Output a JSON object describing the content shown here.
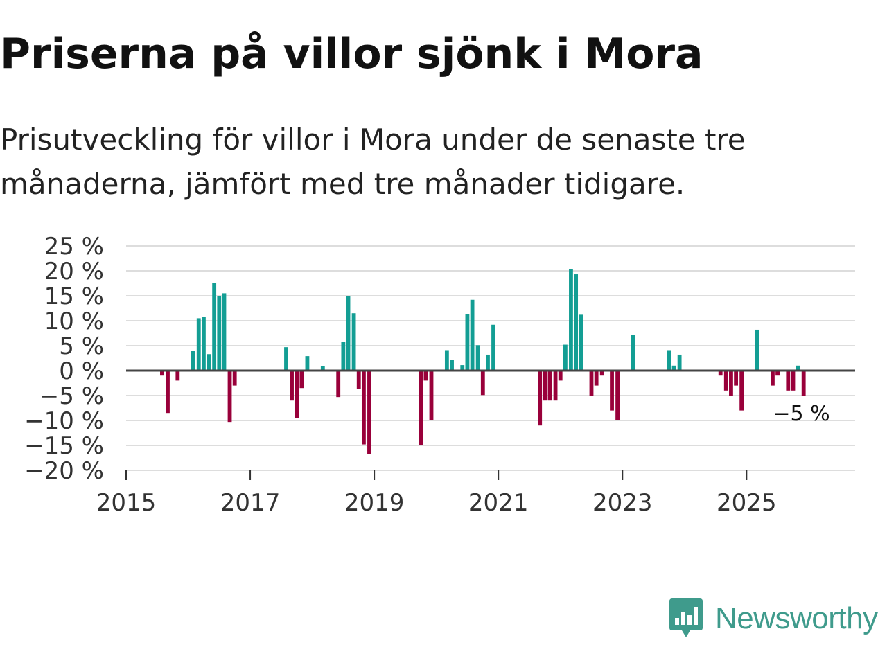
{
  "header": {
    "title": "Priserna på villor sjönk i Mora",
    "subtitle": "Prisutveckling för villor i Mora under de senaste tre månaderna, jämfört med tre månader tidigare."
  },
  "colors": {
    "positive": "#139e94",
    "negative": "#99003a",
    "gridline": "#dddddd",
    "zero_line": "#444444"
  },
  "chart_data": {
    "type": "bar",
    "title": "",
    "xlabel": "",
    "ylabel": "",
    "ylim": [
      -20,
      25
    ],
    "xlim": [
      2015,
      2026.75
    ],
    "y_ticks": [
      25,
      20,
      15,
      10,
      5,
      0,
      -5,
      -10,
      -15,
      -20
    ],
    "y_tick_labels": [
      "25 %",
      "20 %",
      "15 %",
      "10 %",
      "5 %",
      "0 %",
      "−5 %",
      "−10 %",
      "−15 %",
      "−20 %"
    ],
    "x_ticks": [
      2015,
      2017,
      2019,
      2021,
      2023,
      2025
    ],
    "x_tick_labels": [
      "2015",
      "2017",
      "2019",
      "2021",
      "2023",
      "2025"
    ],
    "grid": true,
    "last_value_label": "−5 %",
    "series": [
      {
        "name": "Prisutveckling",
        "points": [
          {
            "x": 2015.58,
            "y": -1
          },
          {
            "x": 2015.67,
            "y": -8.5
          },
          {
            "x": 2015.83,
            "y": -2
          },
          {
            "x": 2016.08,
            "y": 4
          },
          {
            "x": 2016.17,
            "y": 10.5
          },
          {
            "x": 2016.25,
            "y": 10.7
          },
          {
            "x": 2016.33,
            "y": 3.3
          },
          {
            "x": 2016.42,
            "y": 17.5
          },
          {
            "x": 2016.5,
            "y": 15
          },
          {
            "x": 2016.58,
            "y": 15.5
          },
          {
            "x": 2016.67,
            "y": -10.3
          },
          {
            "x": 2016.75,
            "y": -3
          },
          {
            "x": 2017.58,
            "y": 4.7
          },
          {
            "x": 2017.67,
            "y": -6
          },
          {
            "x": 2017.75,
            "y": -9.5
          },
          {
            "x": 2017.83,
            "y": -3.5
          },
          {
            "x": 2017.92,
            "y": 2.9
          },
          {
            "x": 2018.17,
            "y": 0.9
          },
          {
            "x": 2018.42,
            "y": -5.3
          },
          {
            "x": 2018.5,
            "y": 5.8
          },
          {
            "x": 2018.58,
            "y": 15
          },
          {
            "x": 2018.67,
            "y": 11.5
          },
          {
            "x": 2018.75,
            "y": -3.7
          },
          {
            "x": 2018.83,
            "y": -14.8
          },
          {
            "x": 2018.92,
            "y": -16.8
          },
          {
            "x": 2019.75,
            "y": -15
          },
          {
            "x": 2019.83,
            "y": -2
          },
          {
            "x": 2019.92,
            "y": -10
          },
          {
            "x": 2020.17,
            "y": 4.1
          },
          {
            "x": 2020.25,
            "y": 2.2
          },
          {
            "x": 2020.42,
            "y": 1.1
          },
          {
            "x": 2020.5,
            "y": 11.3
          },
          {
            "x": 2020.58,
            "y": 14.2
          },
          {
            "x": 2020.67,
            "y": 5.1
          },
          {
            "x": 2020.75,
            "y": -4.9
          },
          {
            "x": 2020.83,
            "y": 3.2
          },
          {
            "x": 2020.92,
            "y": 9.2
          },
          {
            "x": 2021.67,
            "y": -11
          },
          {
            "x": 2021.75,
            "y": -6
          },
          {
            "x": 2021.83,
            "y": -6
          },
          {
            "x": 2021.92,
            "y": -6
          },
          {
            "x": 2022.0,
            "y": -2
          },
          {
            "x": 2022.08,
            "y": 5.2
          },
          {
            "x": 2022.17,
            "y": 20.3
          },
          {
            "x": 2022.25,
            "y": 19.3
          },
          {
            "x": 2022.33,
            "y": 11.2
          },
          {
            "x": 2022.5,
            "y": -5
          },
          {
            "x": 2022.58,
            "y": -3
          },
          {
            "x": 2022.67,
            "y": -1
          },
          {
            "x": 2022.83,
            "y": -8
          },
          {
            "x": 2022.92,
            "y": -10
          },
          {
            "x": 2023.17,
            "y": 7.1
          },
          {
            "x": 2023.75,
            "y": 4.1
          },
          {
            "x": 2023.83,
            "y": 1
          },
          {
            "x": 2023.92,
            "y": 3.2
          },
          {
            "x": 2024.58,
            "y": -1
          },
          {
            "x": 2024.67,
            "y": -4
          },
          {
            "x": 2024.75,
            "y": -5
          },
          {
            "x": 2024.83,
            "y": -3
          },
          {
            "x": 2024.92,
            "y": -8
          },
          {
            "x": 2025.17,
            "y": 8.2
          },
          {
            "x": 2025.42,
            "y": -3
          },
          {
            "x": 2025.5,
            "y": -1
          },
          {
            "x": 2025.67,
            "y": -4
          },
          {
            "x": 2025.75,
            "y": -4
          },
          {
            "x": 2025.83,
            "y": 1
          },
          {
            "x": 2025.92,
            "y": -5
          }
        ]
      }
    ]
  },
  "brand": {
    "name": "Newsworthy",
    "logo_icon": "bar-chart-speech-bubble-icon"
  }
}
